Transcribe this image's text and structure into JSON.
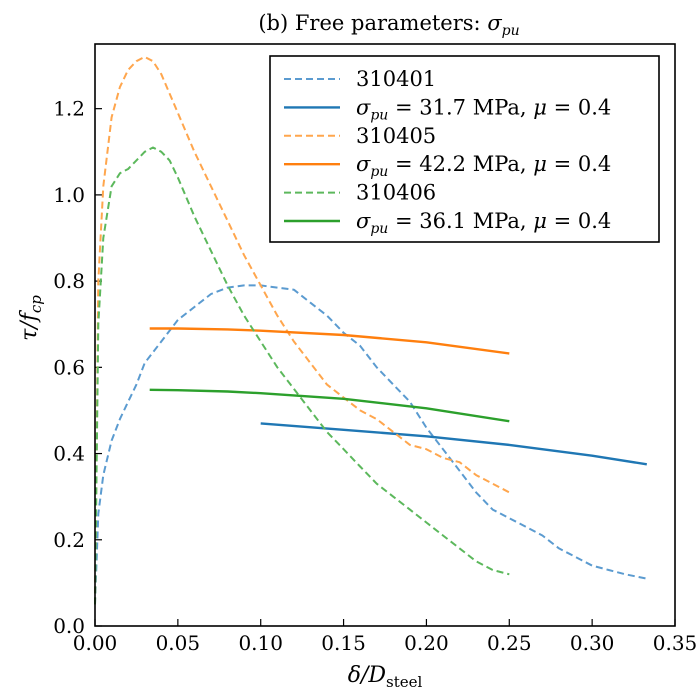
{
  "chart_data": {
    "type": "line",
    "title": "(b) Free parameters: σ_pu",
    "title_parts": {
      "prefix": "(b) Free parameters: ",
      "sym": "σ",
      "sub": "pu"
    },
    "xlabel": "δ/D_steel",
    "xlabel_parts": {
      "main": "δ/D",
      "sub": "steel"
    },
    "ylabel": "τ/f_cp",
    "ylabel_parts": {
      "main": "τ/f",
      "sub": "cp"
    },
    "xlim": [
      0.0,
      0.35
    ],
    "ylim": [
      0.0,
      1.35
    ],
    "xticks": [
      0.0,
      0.05,
      0.1,
      0.15,
      0.2,
      0.25,
      0.3,
      0.35
    ],
    "xtick_labels": [
      "0.00",
      "0.05",
      "0.10",
      "0.15",
      "0.20",
      "0.25",
      "0.30",
      "0.35"
    ],
    "yticks": [
      0.0,
      0.2,
      0.4,
      0.6,
      0.8,
      1.0,
      1.2
    ],
    "ytick_labels": [
      "0.0",
      "0.2",
      "0.4",
      "0.6",
      "0.8",
      "1.0",
      "1.2"
    ],
    "grid": false,
    "legend_position": "top-right",
    "series": [
      {
        "name": "310401",
        "legend": {
          "plain": "310401"
        },
        "style": "dashed",
        "color": "#5b9bd0",
        "x": [
          0.0,
          0.002,
          0.005,
          0.01,
          0.015,
          0.02,
          0.025,
          0.03,
          0.04,
          0.05,
          0.06,
          0.07,
          0.08,
          0.09,
          0.1,
          0.11,
          0.12,
          0.13,
          0.14,
          0.15,
          0.16,
          0.17,
          0.18,
          0.19,
          0.2,
          0.21,
          0.22,
          0.23,
          0.24,
          0.25,
          0.26,
          0.27,
          0.28,
          0.29,
          0.3,
          0.31,
          0.32,
          0.333
        ],
        "y": [
          0.05,
          0.26,
          0.35,
          0.43,
          0.48,
          0.52,
          0.56,
          0.61,
          0.66,
          0.71,
          0.74,
          0.77,
          0.785,
          0.79,
          0.79,
          0.785,
          0.78,
          0.75,
          0.72,
          0.68,
          0.65,
          0.6,
          0.56,
          0.52,
          0.46,
          0.41,
          0.36,
          0.31,
          0.27,
          0.25,
          0.23,
          0.21,
          0.18,
          0.16,
          0.14,
          0.13,
          0.12,
          0.11
        ]
      },
      {
        "name": "σ_pu = 31.7 MPa, μ = 0.4",
        "legend": {
          "sym": "σ",
          "sub": "pu",
          "rest": " = 31.7 MPa, ",
          "mu": "μ",
          "mu_rest": " = 0.4"
        },
        "style": "solid",
        "color": "#1f77b4",
        "x": [
          0.1,
          0.15,
          0.2,
          0.25,
          0.3,
          0.333
        ],
        "y": [
          0.47,
          0.455,
          0.44,
          0.42,
          0.395,
          0.375
        ]
      },
      {
        "name": "310405",
        "legend": {
          "plain": "310405"
        },
        "style": "dashed",
        "color": "#ffa64d",
        "x": [
          0.0,
          0.002,
          0.005,
          0.01,
          0.015,
          0.02,
          0.025,
          0.03,
          0.035,
          0.04,
          0.05,
          0.06,
          0.07,
          0.08,
          0.09,
          0.1,
          0.11,
          0.12,
          0.13,
          0.14,
          0.15,
          0.16,
          0.17,
          0.18,
          0.19,
          0.2,
          0.21,
          0.22,
          0.23,
          0.24,
          0.25
        ],
        "y": [
          0.05,
          0.8,
          1.02,
          1.18,
          1.25,
          1.29,
          1.31,
          1.32,
          1.31,
          1.28,
          1.19,
          1.1,
          1.02,
          0.94,
          0.86,
          0.79,
          0.72,
          0.66,
          0.61,
          0.56,
          0.53,
          0.5,
          0.48,
          0.45,
          0.42,
          0.41,
          0.39,
          0.38,
          0.35,
          0.33,
          0.31
        ]
      },
      {
        "name": "σ_pu = 42.2 MPa, μ = 0.4",
        "legend": {
          "sym": "σ",
          "sub": "pu",
          "rest": " = 42.2 MPa, ",
          "mu": "μ",
          "mu_rest": " = 0.4"
        },
        "style": "solid",
        "color": "#ff7f0e",
        "x": [
          0.033,
          0.05,
          0.08,
          0.1,
          0.15,
          0.2,
          0.25
        ],
        "y": [
          0.69,
          0.69,
          0.688,
          0.685,
          0.675,
          0.658,
          0.632
        ]
      },
      {
        "name": "310406",
        "legend": {
          "plain": "310406"
        },
        "style": "dashed",
        "color": "#5cb85c",
        "x": [
          0.0,
          0.002,
          0.005,
          0.01,
          0.015,
          0.02,
          0.025,
          0.03,
          0.035,
          0.04,
          0.045,
          0.05,
          0.06,
          0.07,
          0.08,
          0.09,
          0.1,
          0.11,
          0.12,
          0.13,
          0.14,
          0.15,
          0.16,
          0.17,
          0.18,
          0.19,
          0.2,
          0.21,
          0.22,
          0.23,
          0.24,
          0.25
        ],
        "y": [
          0.05,
          0.7,
          0.9,
          1.02,
          1.05,
          1.06,
          1.08,
          1.1,
          1.11,
          1.1,
          1.08,
          1.04,
          0.95,
          0.87,
          0.79,
          0.72,
          0.66,
          0.6,
          0.55,
          0.5,
          0.45,
          0.41,
          0.37,
          0.33,
          0.3,
          0.27,
          0.24,
          0.21,
          0.18,
          0.15,
          0.13,
          0.12
        ]
      },
      {
        "name": "σ_pu = 36.1 MPa, μ = 0.4",
        "legend": {
          "sym": "σ",
          "sub": "pu",
          "rest": " = 36.1 MPa, ",
          "mu": "μ",
          "mu_rest": " = 0.4"
        },
        "style": "solid",
        "color": "#2ca02c",
        "x": [
          0.033,
          0.05,
          0.08,
          0.1,
          0.15,
          0.2,
          0.25
        ],
        "y": [
          0.548,
          0.547,
          0.544,
          0.54,
          0.527,
          0.505,
          0.475
        ]
      }
    ]
  }
}
